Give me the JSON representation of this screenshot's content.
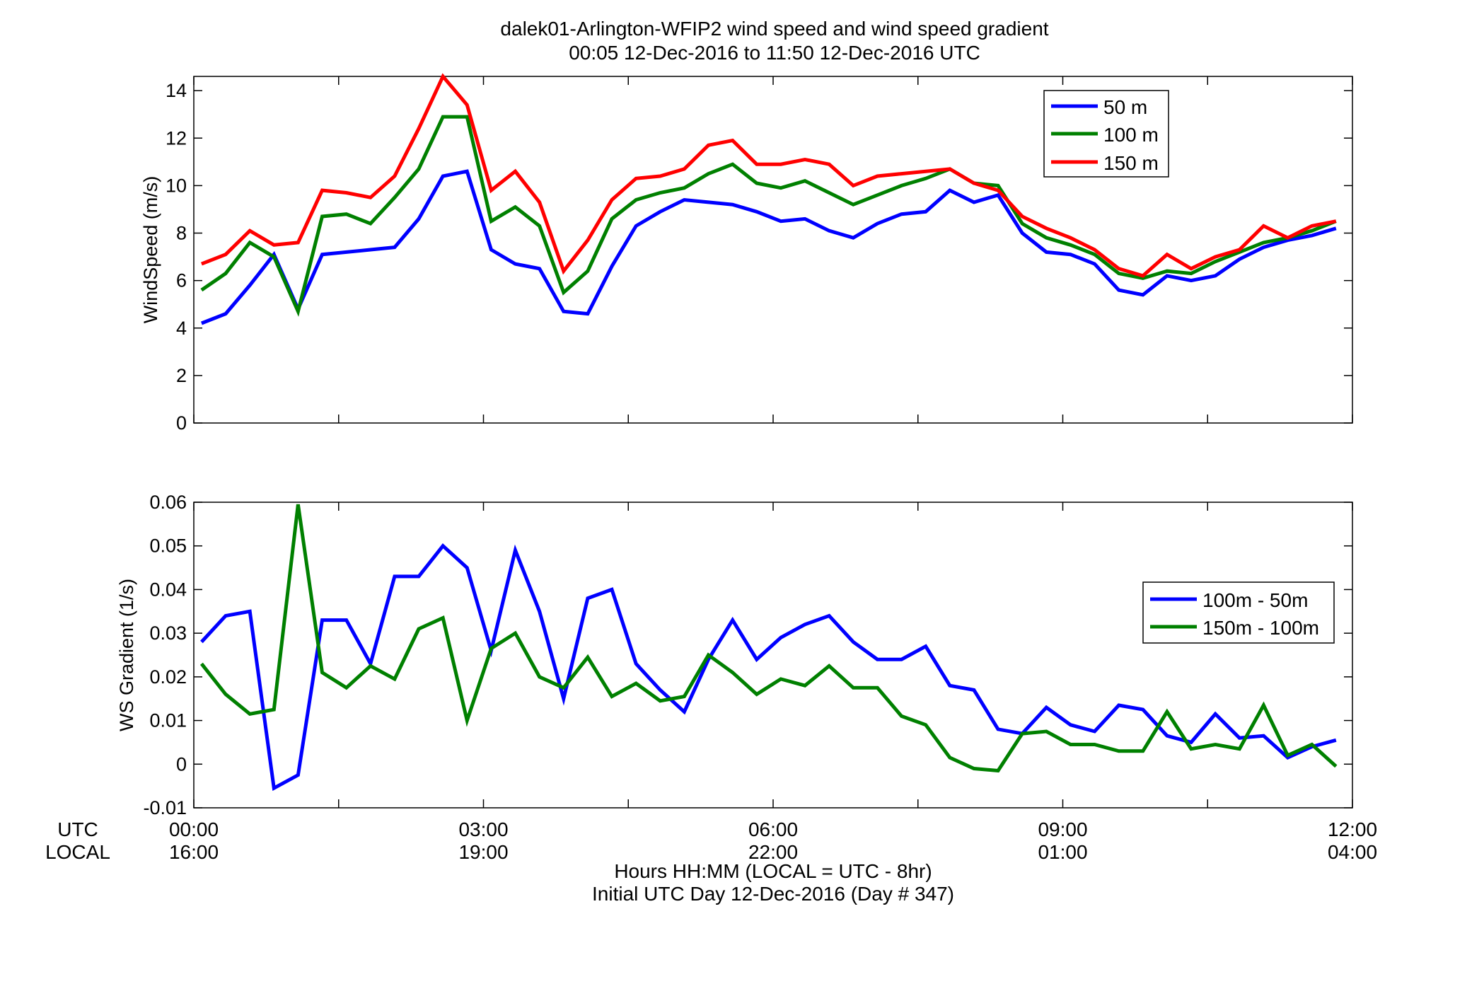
{
  "figure": {
    "title_line1": "dalek01-Arlington-WFIP2  wind speed and wind speed gradient",
    "title_line2": "00:05 12-Dec-2016 to 11:50 12-Dec-2016  UTC",
    "utc_row_label": "UTC",
    "local_row_label": "LOCAL",
    "xlabel_line1": "Hours HH:MM  (LOCAL = UTC - 8hr)",
    "xlabel_line2": "Initial UTC Day 12-Dec-2016 (Day # 347)",
    "x_ticks_utc": [
      "00:00",
      "03:00",
      "06:00",
      "09:00",
      "12:00"
    ],
    "x_ticks_local": [
      "16:00",
      "19:00",
      "22:00",
      "01:00",
      "04:00"
    ]
  },
  "colors": {
    "blue": "#0000ff",
    "green": "#008000",
    "red": "#ff0000"
  },
  "chart_data": [
    {
      "type": "line",
      "ylabel": "WindSpeed (m/s)",
      "xlim": [
        0,
        12
      ],
      "ylim": [
        0,
        14.6
      ],
      "yticks": [
        0,
        2,
        4,
        6,
        8,
        10,
        12,
        14
      ],
      "ytick_labels": [
        "0",
        "2",
        "4",
        "6",
        "8",
        "10",
        "12",
        "14"
      ],
      "grid": false,
      "legend_position": "top-right",
      "x_hours": [
        0.08,
        0.33,
        0.58,
        0.83,
        1.08,
        1.33,
        1.58,
        1.83,
        2.08,
        2.33,
        2.58,
        2.83,
        3.08,
        3.33,
        3.58,
        3.83,
        4.08,
        4.33,
        4.58,
        4.83,
        5.08,
        5.33,
        5.58,
        5.83,
        6.08,
        6.33,
        6.58,
        6.83,
        7.08,
        7.33,
        7.58,
        7.83,
        8.08,
        8.33,
        8.58,
        8.83,
        9.08,
        9.33,
        9.58,
        9.83,
        10.08,
        10.33,
        10.58,
        10.83,
        11.08,
        11.33,
        11.58,
        11.83
      ],
      "series": [
        {
          "name": "50 m",
          "color": "#0000ff",
          "values": [
            4.2,
            4.6,
            5.8,
            7.1,
            4.8,
            7.1,
            7.2,
            7.3,
            7.4,
            8.6,
            10.4,
            10.6,
            7.3,
            6.7,
            6.5,
            4.7,
            4.6,
            6.6,
            8.3,
            8.9,
            9.4,
            9.3,
            9.2,
            8.9,
            8.5,
            8.6,
            8.1,
            7.8,
            8.4,
            8.8,
            8.9,
            9.8,
            9.3,
            9.6,
            8.0,
            7.2,
            7.1,
            6.7,
            5.6,
            5.4,
            6.2,
            6.0,
            6.2,
            6.9,
            7.4,
            7.7,
            7.9,
            8.2
          ]
        },
        {
          "name": "100 m",
          "color": "#008000",
          "values": [
            5.6,
            6.3,
            7.6,
            7.0,
            4.7,
            8.7,
            8.8,
            8.4,
            9.5,
            10.7,
            12.9,
            12.9,
            8.5,
            9.1,
            8.3,
            5.5,
            6.4,
            8.6,
            9.4,
            9.7,
            9.9,
            10.5,
            10.9,
            10.1,
            9.9,
            10.2,
            9.7,
            9.2,
            9.6,
            10.0,
            10.3,
            10.7,
            10.1,
            10.0,
            8.4,
            7.8,
            7.5,
            7.1,
            6.3,
            6.1,
            6.4,
            6.3,
            6.8,
            7.2,
            7.6,
            7.8,
            8.1,
            8.5
          ]
        },
        {
          "name": "150 m",
          "color": "#ff0000",
          "values": [
            6.7,
            7.1,
            8.1,
            7.5,
            7.6,
            9.8,
            9.7,
            9.5,
            10.4,
            12.4,
            14.6,
            13.4,
            9.8,
            10.6,
            9.3,
            6.4,
            7.7,
            9.4,
            10.3,
            10.4,
            10.7,
            11.7,
            11.9,
            10.9,
            10.9,
            11.1,
            10.9,
            10.0,
            10.4,
            10.5,
            10.6,
            10.7,
            10.1,
            9.8,
            8.7,
            8.2,
            7.8,
            7.3,
            6.5,
            6.2,
            7.1,
            6.5,
            7.0,
            7.3,
            8.3,
            7.8,
            8.3,
            8.5
          ]
        }
      ]
    },
    {
      "type": "line",
      "ylabel": "WS Gradient (1/s)",
      "xlim": [
        0,
        12
      ],
      "ylim": [
        -0.01,
        0.06
      ],
      "yticks": [
        -0.01,
        0,
        0.01,
        0.02,
        0.03,
        0.04,
        0.05,
        0.06
      ],
      "ytick_labels": [
        "-0.01",
        "0",
        "0.01",
        "0.02",
        "0.03",
        "0.04",
        "0.05",
        "0.06"
      ],
      "grid": false,
      "legend_position": "right",
      "x_hours": [
        0.08,
        0.33,
        0.58,
        0.83,
        1.08,
        1.33,
        1.58,
        1.83,
        2.08,
        2.33,
        2.58,
        2.83,
        3.08,
        3.33,
        3.58,
        3.83,
        4.08,
        4.33,
        4.58,
        4.83,
        5.08,
        5.33,
        5.58,
        5.83,
        6.08,
        6.33,
        6.58,
        6.83,
        7.08,
        7.33,
        7.58,
        7.83,
        8.08,
        8.33,
        8.58,
        8.83,
        9.08,
        9.33,
        9.58,
        9.83,
        10.08,
        10.33,
        10.58,
        10.83,
        11.08,
        11.33,
        11.58,
        11.83
      ],
      "series": [
        {
          "name": "100m - 50m",
          "color": "#0000ff",
          "values": [
            0.028,
            0.034,
            0.035,
            -0.0055,
            -0.0025,
            0.033,
            0.033,
            0.023,
            0.043,
            0.043,
            0.05,
            0.045,
            0.026,
            0.049,
            0.035,
            0.015,
            0.038,
            0.04,
            0.023,
            0.017,
            0.012,
            0.024,
            0.033,
            0.024,
            0.029,
            0.032,
            0.034,
            0.028,
            0.024,
            0.024,
            0.027,
            0.018,
            0.017,
            0.008,
            0.007,
            0.013,
            0.009,
            0.0075,
            0.0135,
            0.0125,
            0.0065,
            0.005,
            0.0115,
            0.006,
            0.0065,
            0.0015,
            0.004,
            0.0055
          ]
        },
        {
          "name": "150m - 100m",
          "color": "#008000",
          "values": [
            0.023,
            0.016,
            0.0115,
            0.0125,
            0.0595,
            0.021,
            0.0175,
            0.0225,
            0.0195,
            0.031,
            0.0335,
            0.01,
            0.0265,
            0.03,
            0.02,
            0.0175,
            0.0245,
            0.0155,
            0.0185,
            0.0145,
            0.0155,
            0.025,
            0.021,
            0.016,
            0.0195,
            0.018,
            0.0225,
            0.0175,
            0.0175,
            0.011,
            0.009,
            0.0015,
            -0.001,
            -0.0015,
            0.007,
            0.0075,
            0.0045,
            0.0045,
            0.003,
            0.003,
            0.012,
            0.0035,
            0.0045,
            0.0035,
            0.0135,
            0.002,
            0.0045,
            -0.0005
          ]
        }
      ]
    }
  ]
}
